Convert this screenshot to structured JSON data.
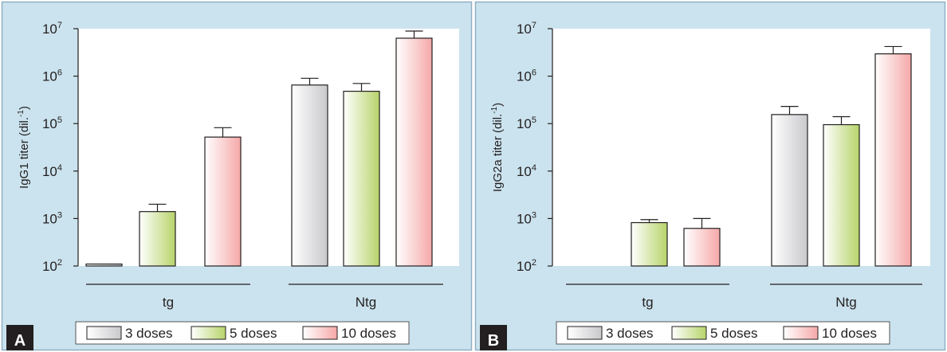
{
  "chart_data": [
    {
      "type": "bar",
      "panel_label": "A",
      "ylabel": "IgG1 titer (dil.",
      "ylabel_superscript": "-1",
      "ylabel_close": ")",
      "yscale": "log",
      "ylim": [
        100,
        10000000
      ],
      "y_ticks": [
        {
          "base": "10",
          "exp": "2"
        },
        {
          "base": "10",
          "exp": "3"
        },
        {
          "base": "10",
          "exp": "4"
        },
        {
          "base": "10",
          "exp": "5"
        },
        {
          "base": "10",
          "exp": "6"
        },
        {
          "base": "10",
          "exp": "7"
        }
      ],
      "groups": [
        "tg",
        "Ntg"
      ],
      "series": [
        {
          "name": "3 doses",
          "values": [
            110,
            650000
          ],
          "error_upper": [
            110,
            900000
          ]
        },
        {
          "name": "5 doses",
          "values": [
            1400,
            480000
          ],
          "error_upper": [
            2000,
            700000
          ]
        },
        {
          "name": "10 doses",
          "values": [
            52000,
            6300000
          ],
          "error_upper": [
            82000,
            8900000
          ]
        }
      ],
      "legend": {
        "position": "bottom"
      }
    },
    {
      "type": "bar",
      "panel_label": "B",
      "ylabel": "IgG2a titer (dil.",
      "ylabel_superscript": "-1",
      "ylabel_close": ")",
      "yscale": "log",
      "ylim": [
        100,
        10000000
      ],
      "y_ticks": [
        {
          "base": "10",
          "exp": "2"
        },
        {
          "base": "10",
          "exp": "3"
        },
        {
          "base": "10",
          "exp": "4"
        },
        {
          "base": "10",
          "exp": "5"
        },
        {
          "base": "10",
          "exp": "6"
        },
        {
          "base": "10",
          "exp": "7"
        }
      ],
      "groups": [
        "tg",
        "Ntg"
      ],
      "series": [
        {
          "name": "3 doses",
          "values": [
            null,
            155000
          ],
          "error_upper": [
            null,
            230000
          ]
        },
        {
          "name": "5 doses",
          "values": [
            820,
            95000
          ],
          "error_upper": [
            950,
            140000
          ]
        },
        {
          "name": "10 doses",
          "values": [
            620,
            2950000
          ],
          "error_upper": [
            1000,
            4200000
          ]
        }
      ],
      "legend": {
        "position": "bottom"
      }
    }
  ],
  "colors": {
    "panel_background": "#cbe3ee",
    "panel_border": "#8fb0c2",
    "plot_background": "#ffffff",
    "label_box": "#231f20",
    "series": {
      "3 doses": [
        "#ffffff",
        "#c9c9cc"
      ],
      "5 doses": [
        "#ffffff",
        "#b7d46a"
      ],
      "10 doses": [
        "#ffffff",
        "#f6a8a8"
      ]
    }
  }
}
